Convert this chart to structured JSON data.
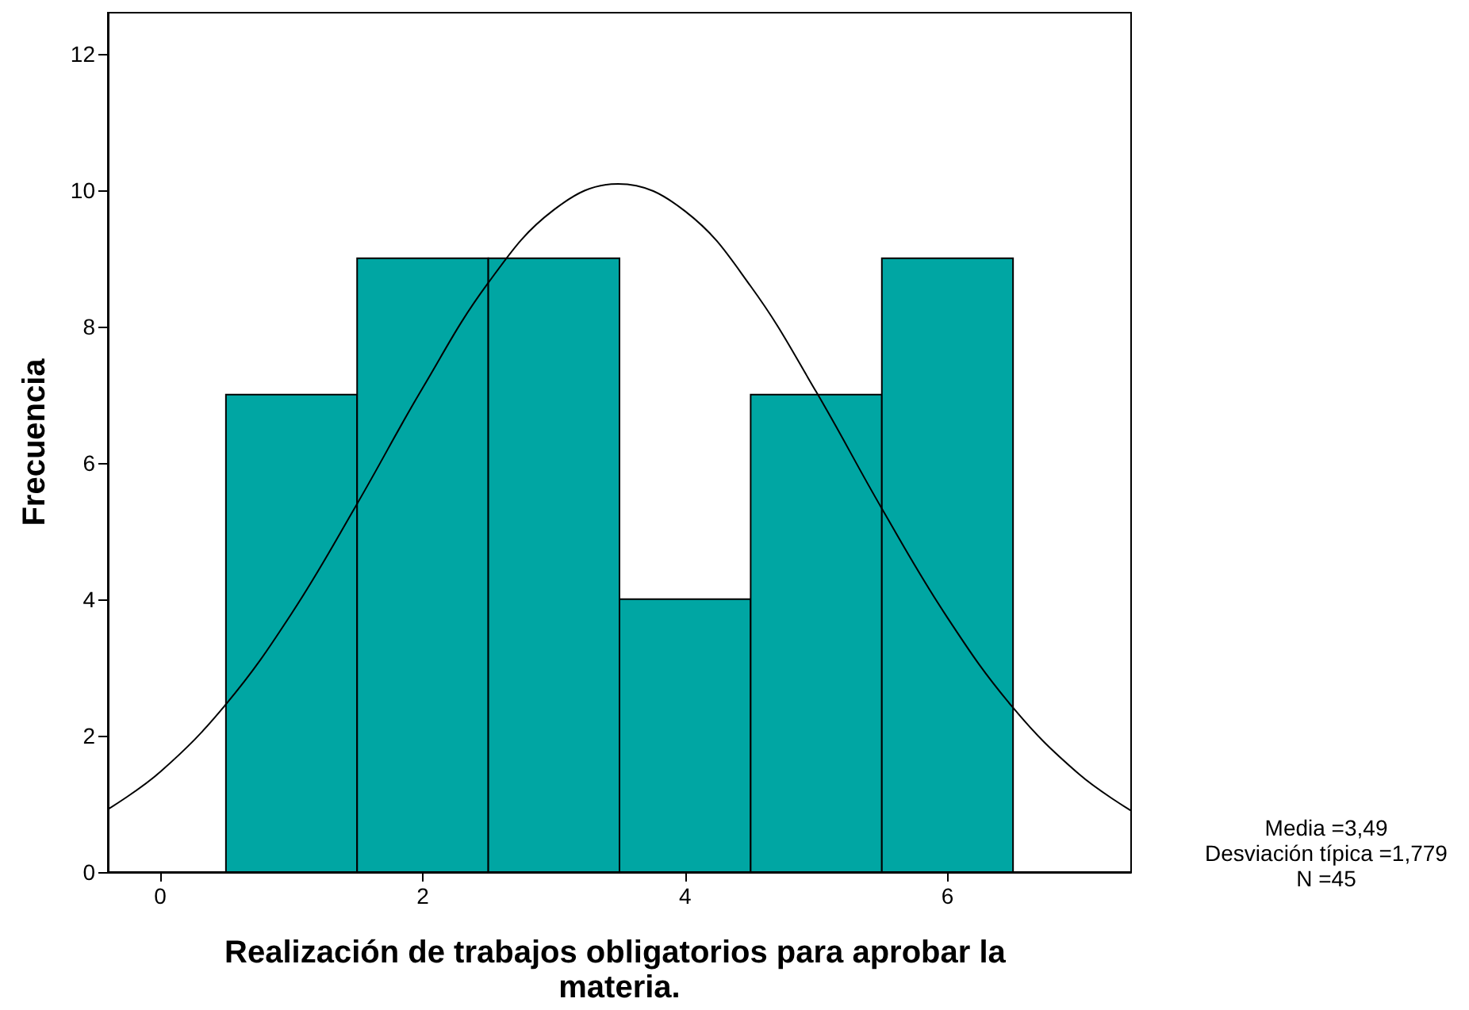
{
  "chart_data": {
    "type": "histogram",
    "xlabel": "Realización de trabajos obligatorios para aprobar la materia.",
    "ylabel": "Frecuencia",
    "bins": [
      0.5,
      1.5,
      2.5,
      3.5,
      4.5,
      5.5,
      6.5
    ],
    "values": [
      7,
      9,
      9,
      4,
      7,
      9
    ],
    "color": "#00a6a3",
    "series": [
      {
        "type": "line",
        "color": "#000000",
        "x": [
          -0.4,
          0,
          0.5,
          1,
          1.5,
          2,
          2.5,
          3,
          3.49,
          4,
          4.5,
          5,
          5.5,
          6,
          6.5,
          7,
          7.4
        ],
        "values": [
          0.92,
          1.47,
          2.46,
          3.79,
          5.4,
          7.1,
          8.64,
          9.71,
          10.09,
          9.69,
          8.59,
          7.04,
          5.33,
          3.73,
          2.41,
          1.44,
          0.9
        ]
      }
    ],
    "xlim": [
      -0.4,
      7.4
    ],
    "xticks": [
      0,
      2,
      4,
      6
    ],
    "ylim": [
      0,
      12.6
    ],
    "yticks": [
      0,
      2,
      4,
      6,
      8,
      10,
      12
    ],
    "grid": false,
    "legend": false,
    "marker": "none",
    "annotations": [
      "Media =3,49",
      "Desviación típica =1,779",
      "N =45"
    ]
  }
}
